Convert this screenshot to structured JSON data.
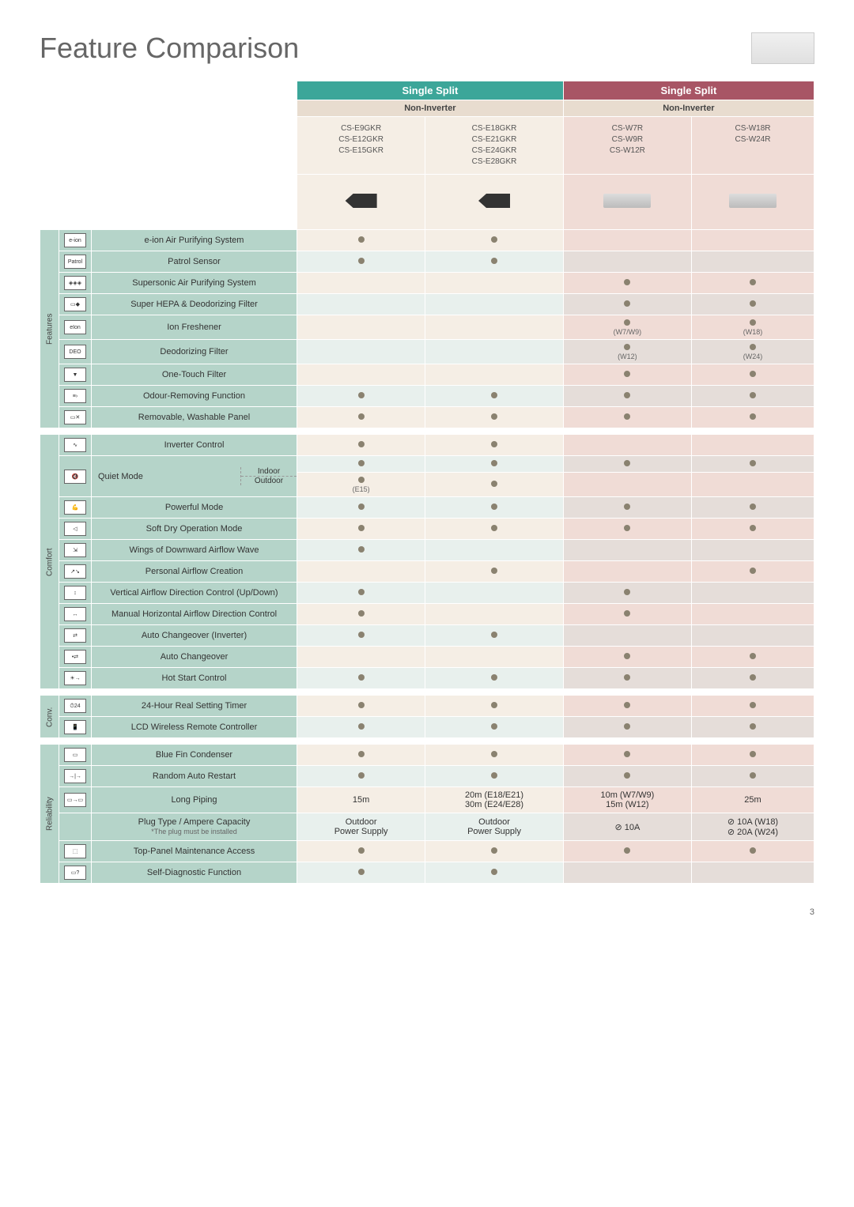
{
  "page": {
    "title": "Feature Comparison",
    "number": "3"
  },
  "series": {
    "col1_2": "Single Split",
    "col3_4": "Single Split"
  },
  "subhead": {
    "label": "Non-Inverter",
    "label2": "Non-Inverter"
  },
  "models": {
    "c1": "CS-E9GKR\nCS-E12GKR\nCS-E15GKR",
    "c2": "CS-E18GKR\nCS-E21GKR\nCS-E24GKR\nCS-E28GKR",
    "c3": "CS-W7R\nCS-W9R\nCS-W12R",
    "c4": "CS-W18R\nCS-W24R"
  },
  "sections": {
    "features": "Features",
    "comfort": "Comfort",
    "conv": "Conv.",
    "reliab": "Reliability"
  },
  "rows": {
    "eion": {
      "label": "e-ion Air Purifying System"
    },
    "patrol": {
      "label": "Patrol Sensor"
    },
    "super": {
      "label": "Supersonic Air Purifying System"
    },
    "hepa": {
      "label": "Super HEPA & Deodorizing Filter"
    },
    "ionfresh": {
      "label": "Ion Freshener",
      "n3": "(W7/W9)",
      "n4": "(W18)"
    },
    "deo": {
      "label": "Deodorizing Filter",
      "n3": "(W12)",
      "n4": "(W24)"
    },
    "onetouch": {
      "label": "One-Touch Filter"
    },
    "odor": {
      "label": "Odour-Removing Function"
    },
    "remov": {
      "label": "Removable, Washable Panel"
    },
    "inverter": {
      "label": "Inverter Control"
    },
    "quiet": {
      "label": "Quiet Mode",
      "sub1": "Indoor",
      "sub2": "Outdoor",
      "n1b": "(E15)"
    },
    "powerful": {
      "label": "Powerful Mode"
    },
    "soft": {
      "label": "Soft Dry Operation Mode"
    },
    "wings": {
      "label": "Wings of Downward Airflow Wave"
    },
    "personal": {
      "label": "Personal Airflow Creation"
    },
    "vert": {
      "label": "Vertical Airflow Direction Control (Up/Down)"
    },
    "horiz": {
      "label": "Manual Horizontal Airflow Direction Control"
    },
    "autoinv": {
      "label": "Auto Changeover (Inverter)"
    },
    "autochange": {
      "label": "Auto Changeover"
    },
    "hotstart": {
      "label": "Hot Start Control"
    },
    "timer24": {
      "label": "24-Hour Real Setting Timer"
    },
    "lcd": {
      "label": "LCD Wireless Remote Controller"
    },
    "bluefin": {
      "label": "Blue Fin Condenser"
    },
    "random": {
      "label": "Random Auto Restart"
    },
    "piping": {
      "label": "Long Piping",
      "n1": "15m",
      "n2": "20m (E18/E21)\n30m (E24/E28)",
      "n3": "10m (W7/W9)\n15m (W12)",
      "n4": "25m"
    },
    "plug": {
      "label": "Plug Type / Ampere Capacity",
      "note": "*The plug must be installed",
      "n1": "Outdoor\nPower Supply",
      "n2": "Outdoor\nPower Supply",
      "n3": "⊘ 10A",
      "n4": "⊘ 10A (W18)\n⊘ 20A (W24)"
    },
    "top": {
      "label": "Top-Panel Maintenance Access"
    },
    "self": {
      "label": "Self-Diagnostic Function"
    }
  },
  "colors": {
    "teal": "#3ca699",
    "redish": "#a85565",
    "beige": "#f5eee5",
    "pink": "#f0dcd6",
    "minty": "#b5d4c9",
    "dot": "#8a8270"
  }
}
